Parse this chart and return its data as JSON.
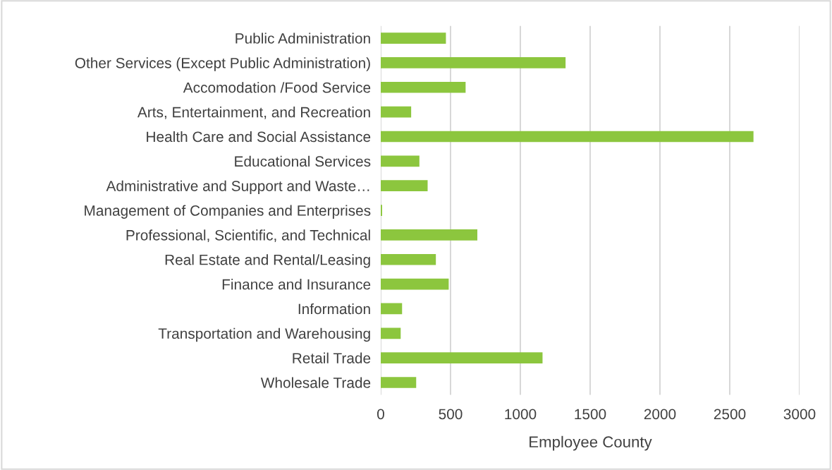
{
  "chart_data": {
    "type": "bar",
    "orientation": "horizontal",
    "xlabel": "Employee County",
    "categories": [
      "Public Administration",
      "Other Services (Except Public Administration)",
      "Accomodation /Food Service",
      "Arts, Entertainment, and Recreation",
      "Health Care and Social Assistance",
      "Educational Services",
      "Administrative and Support and Waste…",
      "Management of Companies and Enterprises",
      "Professional, Scientific, and Technical",
      "Real Estate and Rental/Leasing",
      "Finance and Insurance",
      "Information",
      "Transportation and Warehousing",
      "Retail Trade",
      "Wholesale Trade"
    ],
    "values": [
      467,
      1324,
      608,
      218,
      2670,
      277,
      336,
      10,
      692,
      395,
      487,
      153,
      143,
      1159,
      254
    ],
    "color": "#8cc63e",
    "xlim": [
      0,
      3000
    ],
    "xticks": [
      0,
      500,
      1000,
      1500,
      2000,
      2500,
      3000
    ],
    "grid": "x"
  }
}
